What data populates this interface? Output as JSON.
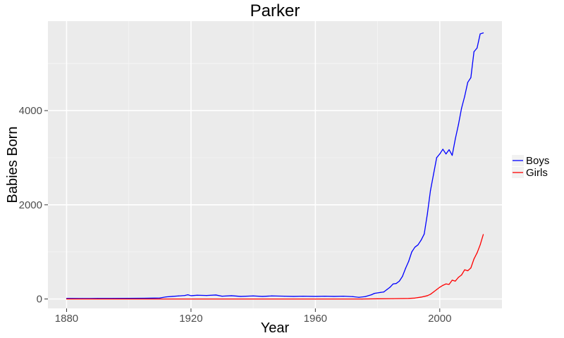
{
  "chart_data": {
    "type": "line",
    "title": "Parker",
    "xlabel": "Year",
    "ylabel": "Babies Born",
    "xlim": [
      1874,
      2020
    ],
    "ylim": [
      -200,
      5900
    ],
    "x_ticks": [
      1880,
      1920,
      1960,
      2000
    ],
    "y_ticks": [
      0,
      2000,
      4000
    ],
    "x_tick_labels": [
      "1880",
      "1920",
      "1960",
      "2000"
    ],
    "y_tick_labels": [
      "0",
      "2000",
      "4000"
    ],
    "grid": true,
    "legend_position": "right",
    "series": [
      {
        "name": "Boys",
        "color": "#0000ff",
        "points": [
          [
            1880,
            12
          ],
          [
            1885,
            10
          ],
          [
            1890,
            12
          ],
          [
            1895,
            12
          ],
          [
            1900,
            14
          ],
          [
            1905,
            16
          ],
          [
            1910,
            22
          ],
          [
            1912,
            45
          ],
          [
            1914,
            55
          ],
          [
            1916,
            65
          ],
          [
            1918,
            75
          ],
          [
            1919,
            90
          ],
          [
            1920,
            70
          ],
          [
            1922,
            80
          ],
          [
            1925,
            75
          ],
          [
            1928,
            85
          ],
          [
            1930,
            60
          ],
          [
            1933,
            70
          ],
          [
            1936,
            55
          ],
          [
            1940,
            65
          ],
          [
            1943,
            55
          ],
          [
            1946,
            65
          ],
          [
            1950,
            60
          ],
          [
            1953,
            55
          ],
          [
            1956,
            60
          ],
          [
            1960,
            55
          ],
          [
            1963,
            60
          ],
          [
            1966,
            55
          ],
          [
            1969,
            60
          ],
          [
            1972,
            50
          ],
          [
            1974,
            35
          ],
          [
            1976,
            50
          ],
          [
            1978,
            90
          ],
          [
            1979,
            120
          ],
          [
            1981,
            140
          ],
          [
            1982,
            150
          ],
          [
            1983,
            200
          ],
          [
            1984,
            250
          ],
          [
            1985,
            320
          ],
          [
            1986,
            330
          ],
          [
            1987,
            380
          ],
          [
            1988,
            480
          ],
          [
            1989,
            650
          ],
          [
            1990,
            800
          ],
          [
            1991,
            1000
          ],
          [
            1992,
            1100
          ],
          [
            1993,
            1150
          ],
          [
            1994,
            1250
          ],
          [
            1995,
            1380
          ],
          [
            1996,
            1800
          ],
          [
            1997,
            2300
          ],
          [
            1998,
            2650
          ],
          [
            1999,
            3000
          ],
          [
            2000,
            3080
          ],
          [
            2001,
            3180
          ],
          [
            2002,
            3080
          ],
          [
            2003,
            3170
          ],
          [
            2004,
            3050
          ],
          [
            2005,
            3400
          ],
          [
            2006,
            3700
          ],
          [
            2007,
            4050
          ],
          [
            2008,
            4300
          ],
          [
            2009,
            4600
          ],
          [
            2010,
            4700
          ],
          [
            2011,
            5250
          ],
          [
            2012,
            5330
          ],
          [
            2013,
            5630
          ],
          [
            2014,
            5650
          ]
        ]
      },
      {
        "name": "Girls",
        "color": "#ff0000",
        "points": [
          [
            1880,
            0
          ],
          [
            1960,
            0
          ],
          [
            1975,
            0
          ],
          [
            1980,
            5
          ],
          [
            1985,
            8
          ],
          [
            1990,
            12
          ],
          [
            1992,
            20
          ],
          [
            1994,
            40
          ],
          [
            1996,
            70
          ],
          [
            1997,
            100
          ],
          [
            1998,
            150
          ],
          [
            1999,
            200
          ],
          [
            2000,
            250
          ],
          [
            2001,
            290
          ],
          [
            2002,
            320
          ],
          [
            2003,
            310
          ],
          [
            2004,
            400
          ],
          [
            2005,
            380
          ],
          [
            2006,
            460
          ],
          [
            2007,
            510
          ],
          [
            2008,
            620
          ],
          [
            2009,
            600
          ],
          [
            2010,
            660
          ],
          [
            2011,
            850
          ],
          [
            2012,
            980
          ],
          [
            2013,
            1150
          ],
          [
            2014,
            1370
          ]
        ]
      }
    ]
  },
  "colors": {
    "panel_background": "#ebebeb",
    "grid_major": "#ffffff",
    "boys": "#0000ff",
    "girls": "#ff0000"
  }
}
